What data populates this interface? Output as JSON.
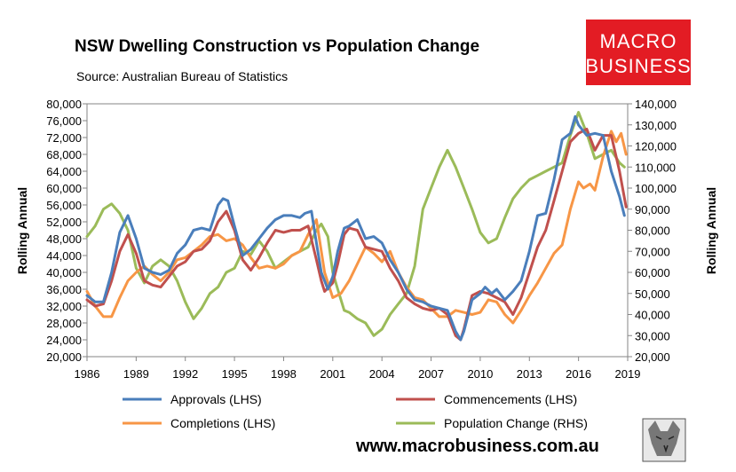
{
  "title": "NSW Dwelling Construction vs Population Change",
  "subtitle": "Source: Australian Bureau of Statistics",
  "logo": {
    "line1": "MACRO",
    "line2": "BUSINESS",
    "color": "#e31c24"
  },
  "website": "www.macrobusiness.com.au",
  "chart_data": {
    "type": "line",
    "title": "NSW Dwelling Construction vs Population Change",
    "ylabel_left": "Rolling Annual",
    "ylabel_right": "Rolling Annual",
    "ylim_left": [
      20000,
      80000
    ],
    "ylim_right": [
      20000,
      140000
    ],
    "xlim": [
      1986,
      2019
    ],
    "x_ticks": [
      "1986",
      "1989",
      "1992",
      "1995",
      "1998",
      "2001",
      "2004",
      "2007",
      "2010",
      "2013",
      "2016",
      "2019"
    ],
    "y_ticks_left": [
      "20,000",
      "24,000",
      "28,000",
      "32,000",
      "36,000",
      "40,000",
      "44,000",
      "48,000",
      "52,000",
      "56,000",
      "60,000",
      "64,000",
      "68,000",
      "72,000",
      "76,000",
      "80,000"
    ],
    "y_ticks_right": [
      "20,000",
      "30,000",
      "40,000",
      "50,000",
      "60,000",
      "70,000",
      "80,000",
      "90,000",
      "100,000",
      "110,000",
      "120,000",
      "130,000",
      "140,000"
    ],
    "grid": false,
    "legend_position": "bottom",
    "series": [
      {
        "name": "Approvals (LHS)",
        "axis": "left",
        "color": "#4a7ebb",
        "points": [
          [
            1986,
            34500
          ],
          [
            1986.5,
            33000
          ],
          [
            1987,
            33000
          ],
          [
            1987.5,
            40000
          ],
          [
            1988,
            49500
          ],
          [
            1988.5,
            53500
          ],
          [
            1989,
            48000
          ],
          [
            1989.5,
            41000
          ],
          [
            1990,
            40000
          ],
          [
            1990.5,
            39500
          ],
          [
            1991,
            40500
          ],
          [
            1991.5,
            44500
          ],
          [
            1992,
            46500
          ],
          [
            1992.5,
            50000
          ],
          [
            1993,
            50500
          ],
          [
            1993.5,
            50000
          ],
          [
            1994,
            56000
          ],
          [
            1994.3,
            57500
          ],
          [
            1994.6,
            57000
          ],
          [
            1995,
            51000
          ],
          [
            1995.5,
            44000
          ],
          [
            1996,
            45500
          ],
          [
            1996.5,
            48000
          ],
          [
            1997,
            50500
          ],
          [
            1997.5,
            52500
          ],
          [
            1998,
            53500
          ],
          [
            1998.5,
            53500
          ],
          [
            1999,
            53000
          ],
          [
            1999.3,
            54000
          ],
          [
            1999.7,
            54500
          ],
          [
            2000,
            47000
          ],
          [
            2000.3,
            40000
          ],
          [
            2000.7,
            36000
          ],
          [
            2001,
            39000
          ],
          [
            2001.3,
            45000
          ],
          [
            2001.7,
            50500
          ],
          [
            2002,
            51000
          ],
          [
            2002.5,
            52500
          ],
          [
            2003,
            48000
          ],
          [
            2003.5,
            48500
          ],
          [
            2004,
            47000
          ],
          [
            2004.5,
            43000
          ],
          [
            2005,
            40000
          ],
          [
            2005.5,
            36000
          ],
          [
            2006,
            33500
          ],
          [
            2006.5,
            33000
          ],
          [
            2007,
            32000
          ],
          [
            2007.5,
            31500
          ],
          [
            2008,
            31000
          ],
          [
            2008.5,
            26000
          ],
          [
            2008.8,
            24000
          ],
          [
            2009,
            26000
          ],
          [
            2009.5,
            33500
          ],
          [
            2010,
            35000
          ],
          [
            2010.3,
            36500
          ],
          [
            2010.7,
            35000
          ],
          [
            2011,
            36000
          ],
          [
            2011.5,
            33500
          ],
          [
            2012,
            35500
          ],
          [
            2012.5,
            38000
          ],
          [
            2013,
            45000
          ],
          [
            2013.5,
            53500
          ],
          [
            2014,
            54000
          ],
          [
            2014.5,
            62000
          ],
          [
            2015,
            71500
          ],
          [
            2015.5,
            73000
          ],
          [
            2015.8,
            77000
          ],
          [
            2016,
            75000
          ],
          [
            2016.5,
            72500
          ],
          [
            2017,
            73000
          ],
          [
            2017.5,
            72500
          ],
          [
            2018,
            64000
          ],
          [
            2018.5,
            58000
          ],
          [
            2018.8,
            53500
          ]
        ]
      },
      {
        "name": "Commencements (LHS)",
        "axis": "left",
        "color": "#c0504d",
        "points": [
          [
            1986,
            33500
          ],
          [
            1986.5,
            32000
          ],
          [
            1987,
            32500
          ],
          [
            1987.5,
            38000
          ],
          [
            1988,
            45000
          ],
          [
            1988.5,
            49000
          ],
          [
            1989,
            44500
          ],
          [
            1989.5,
            38000
          ],
          [
            1990,
            37000
          ],
          [
            1990.5,
            36500
          ],
          [
            1991,
            39000
          ],
          [
            1991.5,
            41500
          ],
          [
            1992,
            42500
          ],
          [
            1992.5,
            45000
          ],
          [
            1993,
            45500
          ],
          [
            1993.5,
            47500
          ],
          [
            1994,
            52000
          ],
          [
            1994.5,
            54500
          ],
          [
            1995,
            50000
          ],
          [
            1995.5,
            43000
          ],
          [
            1996,
            40500
          ],
          [
            1996.5,
            43500
          ],
          [
            1997,
            47000
          ],
          [
            1997.5,
            50000
          ],
          [
            1998,
            49500
          ],
          [
            1998.5,
            50000
          ],
          [
            1999,
            50000
          ],
          [
            1999.5,
            51000
          ],
          [
            2000,
            43000
          ],
          [
            2000.3,
            38000
          ],
          [
            2000.5,
            35500
          ],
          [
            2001,
            37500
          ],
          [
            2001.3,
            42000
          ],
          [
            2001.7,
            49000
          ],
          [
            2002,
            50500
          ],
          [
            2002.5,
            50000
          ],
          [
            2003,
            46000
          ],
          [
            2003.5,
            45500
          ],
          [
            2004,
            45000
          ],
          [
            2004.5,
            41000
          ],
          [
            2005,
            38000
          ],
          [
            2005.5,
            34000
          ],
          [
            2006,
            32500
          ],
          [
            2006.5,
            31500
          ],
          [
            2007,
            31000
          ],
          [
            2007.5,
            31500
          ],
          [
            2008,
            30000
          ],
          [
            2008.5,
            25000
          ],
          [
            2008.8,
            24000
          ],
          [
            2009,
            26500
          ],
          [
            2009.5,
            34500
          ],
          [
            2010,
            35500
          ],
          [
            2010.5,
            35000
          ],
          [
            2011,
            34000
          ],
          [
            2011.5,
            33000
          ],
          [
            2012,
            30000
          ],
          [
            2012.5,
            34000
          ],
          [
            2013,
            40000
          ],
          [
            2013.5,
            46000
          ],
          [
            2014,
            50000
          ],
          [
            2014.5,
            57000
          ],
          [
            2015,
            64000
          ],
          [
            2015.5,
            71000
          ],
          [
            2016,
            73000
          ],
          [
            2016.5,
            74000
          ],
          [
            2017,
            69000
          ],
          [
            2017.5,
            72500
          ],
          [
            2018,
            72500
          ],
          [
            2018.5,
            64000
          ],
          [
            2018.9,
            55500
          ]
        ]
      },
      {
        "name": "Completions (LHS)",
        "axis": "left",
        "color": "#f79646",
        "points": [
          [
            1986,
            35500
          ],
          [
            1986.5,
            32000
          ],
          [
            1987,
            29500
          ],
          [
            1987.5,
            29500
          ],
          [
            1988,
            34000
          ],
          [
            1988.5,
            38000
          ],
          [
            1989,
            40000
          ],
          [
            1989.5,
            41500
          ],
          [
            1990,
            39500
          ],
          [
            1990.5,
            38000
          ],
          [
            1991,
            40000
          ],
          [
            1991.5,
            43000
          ],
          [
            1992,
            43500
          ],
          [
            1992.5,
            45000
          ],
          [
            1993,
            46500
          ],
          [
            1993.5,
            48500
          ],
          [
            1994,
            49000
          ],
          [
            1994.5,
            47500
          ],
          [
            1995,
            48000
          ],
          [
            1995.5,
            46500
          ],
          [
            1996,
            43500
          ],
          [
            1996.5,
            41000
          ],
          [
            1997,
            41500
          ],
          [
            1997.5,
            41000
          ],
          [
            1998,
            42000
          ],
          [
            1998.5,
            44000
          ],
          [
            1999,
            45000
          ],
          [
            1999.5,
            49000
          ],
          [
            2000,
            52500
          ],
          [
            2000.5,
            40000
          ],
          [
            2001,
            34000
          ],
          [
            2001.5,
            35000
          ],
          [
            2002,
            38000
          ],
          [
            2002.5,
            42000
          ],
          [
            2003,
            46000
          ],
          [
            2003.5,
            44500
          ],
          [
            2004,
            42500
          ],
          [
            2004.5,
            45000
          ],
          [
            2005,
            40000
          ],
          [
            2005.5,
            36500
          ],
          [
            2006,
            34000
          ],
          [
            2006.5,
            33500
          ],
          [
            2007,
            31500
          ],
          [
            2007.5,
            29500
          ],
          [
            2008,
            29500
          ],
          [
            2008.5,
            31000
          ],
          [
            2009,
            30500
          ],
          [
            2009.5,
            30000
          ],
          [
            2010,
            30500
          ],
          [
            2010.5,
            33500
          ],
          [
            2011,
            33000
          ],
          [
            2011.5,
            30000
          ],
          [
            2012,
            28000
          ],
          [
            2012.5,
            31000
          ],
          [
            2013,
            34500
          ],
          [
            2013.5,
            37500
          ],
          [
            2014,
            41000
          ],
          [
            2014.5,
            44500
          ],
          [
            2015,
            46500
          ],
          [
            2015.5,
            55000
          ],
          [
            2016,
            61500
          ],
          [
            2016.3,
            60000
          ],
          [
            2016.7,
            61000
          ],
          [
            2017,
            59500
          ],
          [
            2017.5,
            67500
          ],
          [
            2018,
            73500
          ],
          [
            2018.3,
            71000
          ],
          [
            2018.6,
            73000
          ],
          [
            2018.9,
            68000
          ]
        ]
      },
      {
        "name": "Population Change (RHS)",
        "axis": "right",
        "color": "#9bbb59",
        "points": [
          [
            1986,
            77000
          ],
          [
            1986.5,
            82000
          ],
          [
            1987,
            90000
          ],
          [
            1987.5,
            92500
          ],
          [
            1988,
            88000
          ],
          [
            1988.5,
            80000
          ],
          [
            1989,
            62000
          ],
          [
            1989.5,
            55000
          ],
          [
            1990,
            63000
          ],
          [
            1990.5,
            66000
          ],
          [
            1991,
            63000
          ],
          [
            1991.5,
            56000
          ],
          [
            1992,
            46000
          ],
          [
            1992.5,
            38000
          ],
          [
            1993,
            43000
          ],
          [
            1993.5,
            50000
          ],
          [
            1994,
            53000
          ],
          [
            1994.5,
            60000
          ],
          [
            1995,
            62000
          ],
          [
            1995.5,
            70000
          ],
          [
            1996,
            68500
          ],
          [
            1996.5,
            75000
          ],
          [
            1997,
            70000
          ],
          [
            1997.5,
            62000
          ],
          [
            1998,
            65000
          ],
          [
            1998.5,
            68000
          ],
          [
            1999,
            70000
          ],
          [
            1999.5,
            72000
          ],
          [
            2000,
            80000
          ],
          [
            2000.3,
            83000
          ],
          [
            2000.7,
            77000
          ],
          [
            2001,
            60000
          ],
          [
            2001.3,
            52000
          ],
          [
            2001.7,
            42000
          ],
          [
            2002,
            41000
          ],
          [
            2002.5,
            38000
          ],
          [
            2003,
            36000
          ],
          [
            2003.5,
            30000
          ],
          [
            2004,
            33000
          ],
          [
            2004.5,
            40000
          ],
          [
            2005,
            45000
          ],
          [
            2005.5,
            50000
          ],
          [
            2006,
            63000
          ],
          [
            2006.5,
            90000
          ],
          [
            2007,
            100000
          ],
          [
            2007.5,
            110000
          ],
          [
            2008,
            118000
          ],
          [
            2008.5,
            110000
          ],
          [
            2009,
            100000
          ],
          [
            2009.5,
            90000
          ],
          [
            2010,
            79000
          ],
          [
            2010.5,
            74000
          ],
          [
            2011,
            76000
          ],
          [
            2011.5,
            86000
          ],
          [
            2012,
            95000
          ],
          [
            2012.5,
            100000
          ],
          [
            2013,
            104000
          ],
          [
            2013.5,
            106000
          ],
          [
            2014,
            108000
          ],
          [
            2014.5,
            110000
          ],
          [
            2015,
            112000
          ],
          [
            2015.5,
            125000
          ],
          [
            2016,
            136000
          ],
          [
            2016.5,
            126000
          ],
          [
            2017,
            114000
          ],
          [
            2017.5,
            116000
          ],
          [
            2018,
            118000
          ],
          [
            2018.5,
            112000
          ],
          [
            2018.8,
            110000
          ]
        ]
      }
    ]
  }
}
